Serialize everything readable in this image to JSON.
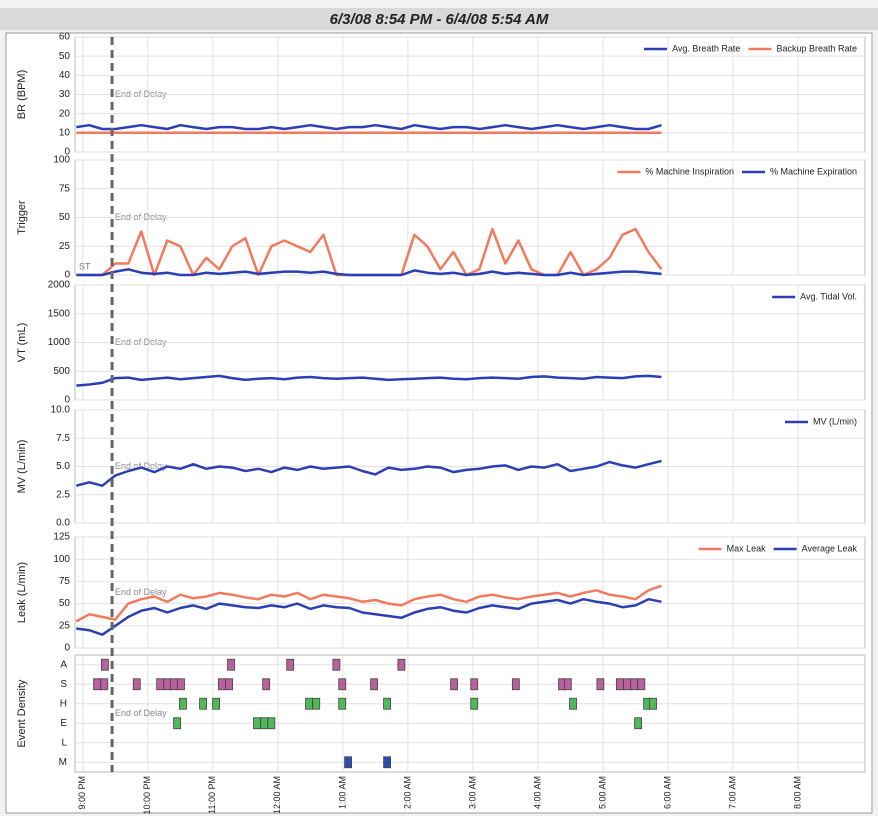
{
  "title": "6/3/08 8:54 PM - 6/4/08 5:54 AM",
  "delay": {
    "label": "End of Delay",
    "x": 21.45
  },
  "xaxis": {
    "xlim": [
      20.88,
      33.03
    ],
    "xticks": [
      {
        "value": 21,
        "label": "9:00 PM"
      },
      {
        "value": 22,
        "label": "10:00 PM"
      },
      {
        "value": 23,
        "label": "11:00 PM"
      },
      {
        "value": 24,
        "label": "12:00 AM"
      },
      {
        "value": 25,
        "label": "1:00 AM"
      },
      {
        "value": 26,
        "label": "2:00 AM"
      },
      {
        "value": 27,
        "label": "3:00 AM"
      },
      {
        "value": 28,
        "label": "4:00 AM"
      },
      {
        "value": 29,
        "label": "5:00 AM"
      },
      {
        "value": 30,
        "label": "6:00 AM"
      },
      {
        "value": 31,
        "label": "7:00 AM"
      },
      {
        "value": 32,
        "label": "8:00 AM"
      }
    ]
  },
  "chart_data": [
    {
      "type": "line",
      "ylabel": "BR (BPM)",
      "ylim": [
        0,
        60
      ],
      "yticks": [
        0,
        10,
        20,
        30,
        40,
        50,
        60
      ],
      "grid": true,
      "legend": "upper right",
      "x": [
        20.9,
        21.1,
        21.3,
        21.5,
        21.7,
        21.9,
        22.1,
        22.3,
        22.5,
        22.7,
        22.9,
        23.1,
        23.3,
        23.5,
        23.7,
        23.9,
        24.1,
        24.3,
        24.5,
        24.7,
        24.9,
        25.1,
        25.3,
        25.5,
        25.7,
        25.9,
        26.1,
        26.3,
        26.5,
        26.7,
        26.9,
        27.1,
        27.3,
        27.5,
        27.7,
        27.9,
        28.1,
        28.3,
        28.5,
        28.7,
        28.9,
        29.1,
        29.3,
        29.5,
        29.7,
        29.9
      ],
      "series": [
        {
          "name": "Avg. Breath Rate",
          "color": "#2b3fb5",
          "values": [
            13,
            14,
            12,
            12,
            13,
            14,
            13,
            12,
            14,
            13,
            12,
            13,
            13,
            12,
            12,
            13,
            12,
            13,
            14,
            13,
            12,
            13,
            13,
            14,
            13,
            12,
            14,
            13,
            12,
            13,
            13,
            12,
            13,
            14,
            13,
            12,
            13,
            14,
            13,
            12,
            13,
            14,
            13,
            12,
            12,
            14
          ]
        },
        {
          "name": "Backup Breath Rate",
          "color": "#f27a5e",
          "values": [
            10,
            10,
            10,
            10,
            10,
            10,
            10,
            10,
            10,
            10,
            10,
            10,
            10,
            10,
            10,
            10,
            10,
            10,
            10,
            10,
            10,
            10,
            10,
            10,
            10,
            10,
            10,
            10,
            10,
            10,
            10,
            10,
            10,
            10,
            10,
            10,
            10,
            10,
            10,
            10,
            10,
            10,
            10,
            10,
            10,
            10
          ]
        }
      ]
    },
    {
      "type": "line",
      "ylabel": "Trigger",
      "ylim": [
        0,
        100
      ],
      "yticks": [
        0,
        25,
        50,
        75,
        100
      ],
      "grid": true,
      "legend": "upper right",
      "annotation": "ST",
      "x": [
        20.9,
        21.1,
        21.3,
        21.5,
        21.7,
        21.9,
        22.1,
        22.3,
        22.5,
        22.7,
        22.9,
        23.1,
        23.3,
        23.5,
        23.7,
        23.9,
        24.1,
        24.3,
        24.5,
        24.7,
        24.9,
        25.1,
        25.3,
        25.5,
        25.7,
        25.9,
        26.1,
        26.3,
        26.5,
        26.7,
        26.9,
        27.1,
        27.3,
        27.5,
        27.7,
        27.9,
        28.1,
        28.3,
        28.5,
        28.7,
        28.9,
        29.1,
        29.3,
        29.5,
        29.7,
        29.9
      ],
      "series": [
        {
          "name": "% Machine Inspiration",
          "color": "#f27a5e",
          "values": [
            0,
            0,
            0,
            10,
            10,
            38,
            0,
            30,
            25,
            0,
            15,
            5,
            25,
            32,
            0,
            25,
            30,
            25,
            20,
            35,
            0,
            0,
            0,
            0,
            0,
            0,
            35,
            25,
            5,
            20,
            0,
            5,
            40,
            10,
            30,
            5,
            0,
            0,
            20,
            0,
            5,
            15,
            35,
            40,
            20,
            5
          ]
        },
        {
          "name": "% Machine Expiration",
          "color": "#2b3fb5",
          "values": [
            0,
            0,
            0,
            3,
            5,
            2,
            1,
            2,
            0,
            0,
            2,
            1,
            2,
            3,
            1,
            2,
            3,
            3,
            2,
            3,
            1,
            0,
            0,
            0,
            0,
            0,
            4,
            2,
            1,
            2,
            0,
            1,
            3,
            1,
            2,
            1,
            0,
            0,
            2,
            0,
            1,
            2,
            3,
            3,
            2,
            1
          ]
        }
      ]
    },
    {
      "type": "line",
      "ylabel": "VT (mL)",
      "ylim": [
        0,
        2000
      ],
      "yticks": [
        0,
        500,
        1000,
        1500,
        2000
      ],
      "grid": true,
      "legend": "upper right",
      "x": [
        20.9,
        21.1,
        21.3,
        21.5,
        21.7,
        21.9,
        22.1,
        22.3,
        22.5,
        22.7,
        22.9,
        23.1,
        23.3,
        23.5,
        23.7,
        23.9,
        24.1,
        24.3,
        24.5,
        24.7,
        24.9,
        25.1,
        25.3,
        25.5,
        25.7,
        25.9,
        26.1,
        26.3,
        26.5,
        26.7,
        26.9,
        27.1,
        27.3,
        27.5,
        27.7,
        27.9,
        28.1,
        28.3,
        28.5,
        28.7,
        28.9,
        29.1,
        29.3,
        29.5,
        29.7,
        29.9
      ],
      "series": [
        {
          "name": "Avg. Tidal Vol.",
          "color": "#2b3fb5",
          "values": [
            250,
            270,
            300,
            380,
            390,
            350,
            370,
            390,
            360,
            380,
            400,
            420,
            380,
            350,
            370,
            380,
            360,
            390,
            400,
            380,
            370,
            380,
            390,
            370,
            350,
            360,
            370,
            380,
            390,
            370,
            360,
            380,
            390,
            380,
            370,
            400,
            410,
            390,
            380,
            370,
            400,
            390,
            380,
            410,
            420,
            400
          ]
        }
      ]
    },
    {
      "type": "line",
      "ylabel": "MV (L/min)",
      "ylim": [
        0,
        10
      ],
      "yticks": [
        {
          "value": 0,
          "label": "0.0"
        },
        {
          "value": 2.5,
          "label": "2.5"
        },
        {
          "value": 5,
          "label": "5.0"
        },
        {
          "value": 7.5,
          "label": "7.5"
        },
        {
          "value": 10,
          "label": "10.0"
        }
      ],
      "grid": true,
      "legend": "upper right",
      "x": [
        20.9,
        21.1,
        21.3,
        21.5,
        21.7,
        21.9,
        22.1,
        22.3,
        22.5,
        22.7,
        22.9,
        23.1,
        23.3,
        23.5,
        23.7,
        23.9,
        24.1,
        24.3,
        24.5,
        24.7,
        24.9,
        25.1,
        25.3,
        25.5,
        25.7,
        25.9,
        26.1,
        26.3,
        26.5,
        26.7,
        26.9,
        27.1,
        27.3,
        27.5,
        27.7,
        27.9,
        28.1,
        28.3,
        28.5,
        28.7,
        28.9,
        29.1,
        29.3,
        29.5,
        29.7,
        29.9
      ],
      "series": [
        {
          "name": "MV (L/min)",
          "color": "#2b3fb5",
          "values": [
            3.3,
            3.6,
            3.3,
            4.2,
            4.6,
            4.9,
            4.5,
            5.0,
            4.8,
            5.2,
            4.8,
            5.0,
            4.9,
            4.6,
            4.8,
            4.5,
            4.9,
            4.7,
            5.0,
            4.8,
            4.9,
            5.0,
            4.6,
            4.3,
            4.9,
            4.7,
            4.8,
            5.0,
            4.9,
            4.5,
            4.7,
            4.8,
            5.0,
            5.1,
            4.7,
            5.0,
            4.9,
            5.2,
            4.6,
            4.8,
            5.0,
            5.4,
            5.1,
            4.9,
            5.2,
            5.5
          ]
        }
      ]
    },
    {
      "type": "line",
      "ylabel": "Leak (L/min)",
      "ylim": [
        0,
        125
      ],
      "yticks": [
        0,
        25,
        50,
        75,
        100,
        125
      ],
      "grid": true,
      "legend": "upper right",
      "x": [
        20.9,
        21.1,
        21.3,
        21.5,
        21.7,
        21.9,
        22.1,
        22.3,
        22.5,
        22.7,
        22.9,
        23.1,
        23.3,
        23.5,
        23.7,
        23.9,
        24.1,
        24.3,
        24.5,
        24.7,
        24.9,
        25.1,
        25.3,
        25.5,
        25.7,
        25.9,
        26.1,
        26.3,
        26.5,
        26.7,
        26.9,
        27.1,
        27.3,
        27.5,
        27.7,
        27.9,
        28.1,
        28.3,
        28.5,
        28.7,
        28.9,
        29.1,
        29.3,
        29.5,
        29.7,
        29.9
      ],
      "series": [
        {
          "name": "Max Leak",
          "color": "#f27a5e",
          "values": [
            30,
            38,
            35,
            32,
            50,
            55,
            58,
            52,
            60,
            56,
            58,
            62,
            60,
            57,
            55,
            60,
            58,
            62,
            55,
            60,
            58,
            56,
            52,
            54,
            50,
            48,
            55,
            58,
            60,
            55,
            52,
            58,
            60,
            57,
            55,
            58,
            60,
            62,
            58,
            62,
            65,
            60,
            58,
            55,
            65,
            70
          ]
        },
        {
          "name": "Average Leak",
          "color": "#2b3fb5",
          "values": [
            22,
            20,
            15,
            25,
            35,
            42,
            45,
            40,
            45,
            48,
            44,
            50,
            48,
            46,
            45,
            48,
            46,
            50,
            44,
            48,
            46,
            45,
            40,
            38,
            36,
            34,
            40,
            44,
            46,
            42,
            40,
            45,
            48,
            46,
            44,
            50,
            52,
            54,
            50,
            55,
            52,
            50,
            46,
            48,
            55,
            52
          ]
        }
      ]
    },
    {
      "type": "event",
      "ylabel": "Event Density",
      "grid": true,
      "rows": [
        {
          "label": "A",
          "color": "#b9609f",
          "x": [
            21.34,
            23.28,
            24.19,
            24.9,
            25.9
          ]
        },
        {
          "label": "S",
          "color": "#b9609f",
          "x": [
            21.22,
            21.33,
            21.83,
            22.19,
            22.3,
            22.4,
            22.51,
            23.14,
            23.25,
            23.82,
            24.99,
            25.48,
            26.71,
            27.02,
            27.66,
            28.37,
            28.46,
            28.96,
            29.26,
            29.37,
            29.48,
            29.59
          ]
        },
        {
          "label": "H",
          "color": "#4fb85a",
          "x": [
            22.54,
            22.85,
            23.05,
            24.48,
            24.59,
            24.99,
            25.68,
            27.02,
            28.54,
            29.68,
            29.77
          ]
        },
        {
          "label": "E",
          "color": "#4fb85a",
          "x": [
            22.45,
            23.68,
            23.79,
            23.9,
            29.54
          ]
        },
        {
          "label": "L",
          "color": "#4fb85a",
          "x": []
        },
        {
          "label": "M",
          "color": "#2f4fb0",
          "x": [
            25.08,
            25.68
          ]
        }
      ]
    }
  ]
}
